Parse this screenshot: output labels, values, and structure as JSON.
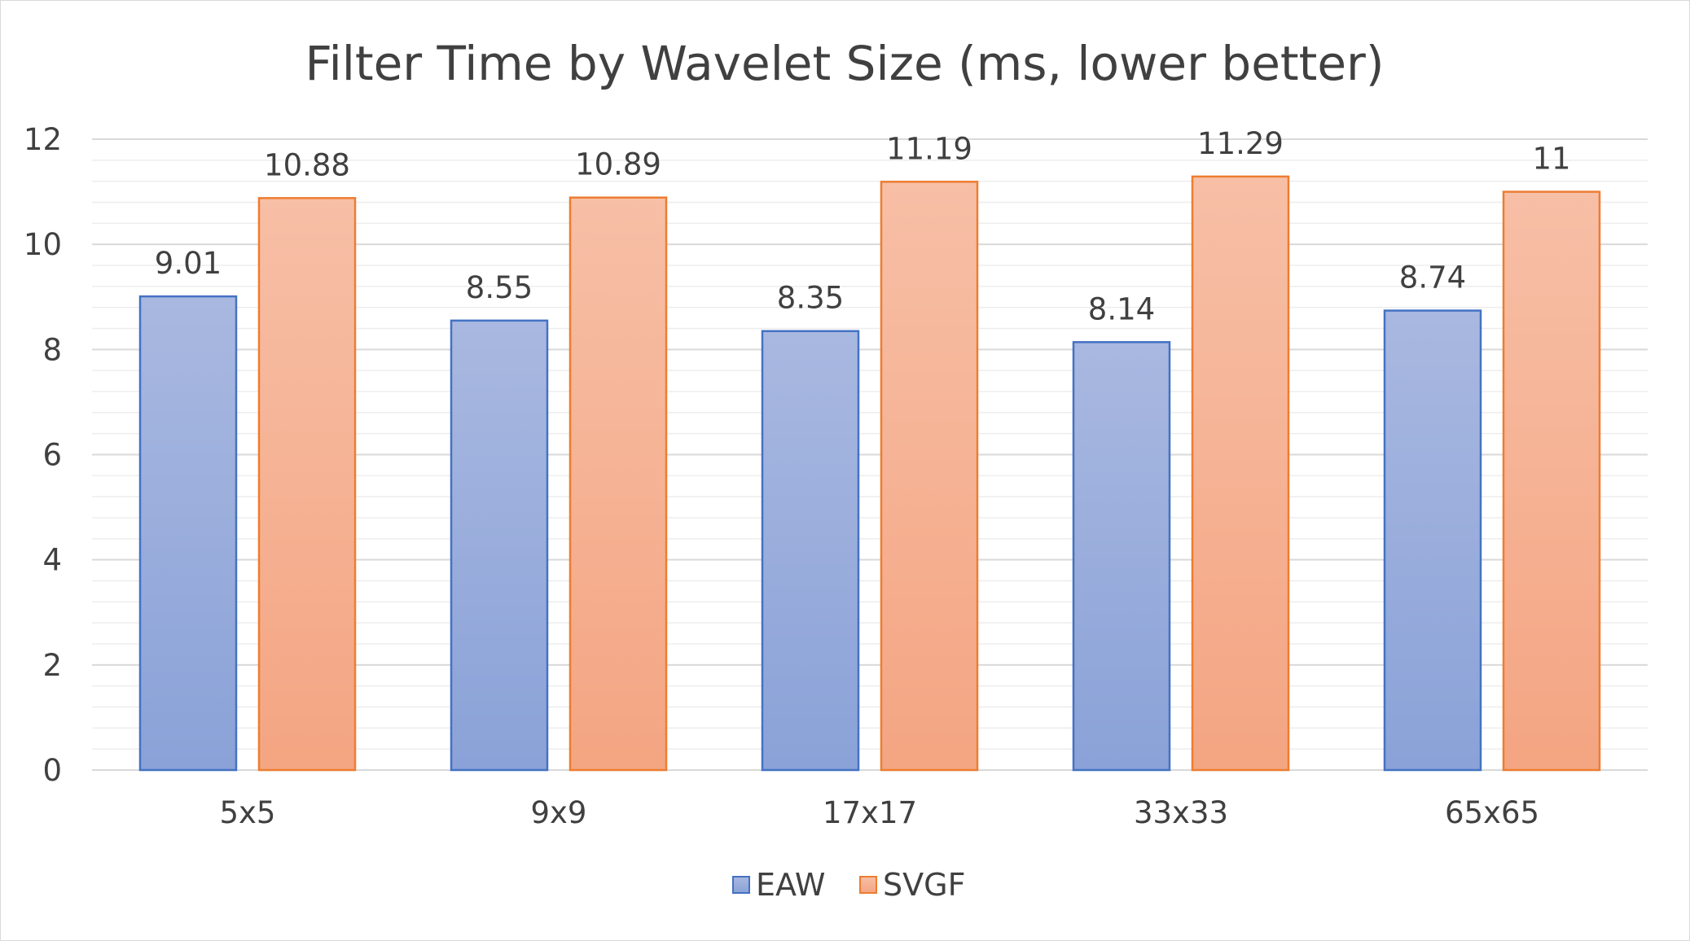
{
  "chart_data": {
    "type": "bar",
    "title": "Filter Time by Wavelet Size (ms, lower better)",
    "categories": [
      "5x5",
      "9x9",
      "17x17",
      "33x33",
      "65x65"
    ],
    "series": [
      {
        "name": "EAW",
        "values": [
          9.01,
          8.55,
          8.35,
          8.14,
          8.74
        ],
        "data_labels": [
          "9.01",
          "8.55",
          "8.35",
          "8.14",
          "8.74"
        ],
        "fill_top": "#a9b8e0",
        "fill_bottom": "#8aa2d8",
        "stroke": "#4472c4"
      },
      {
        "name": "SVGF",
        "values": [
          10.88,
          10.89,
          11.19,
          11.29,
          11.0
        ],
        "data_labels": [
          "10.88",
          "10.89",
          "11.19",
          "11.29",
          "11"
        ],
        "fill_top": "#f7bfa6",
        "fill_bottom": "#f4a582",
        "stroke": "#ed7d31"
      }
    ],
    "ylim": [
      0,
      12
    ],
    "y_ticks": [
      "0",
      "2",
      "4",
      "6",
      "8",
      "10",
      "12"
    ],
    "grid": true,
    "legend_position": "bottom"
  }
}
